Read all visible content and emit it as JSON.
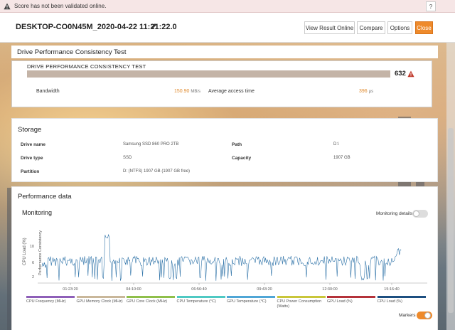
{
  "warning": {
    "text": "Score has not been validated online.",
    "help_label": "?"
  },
  "header": {
    "title": "DESKTOP-CO0N45M_2020-04-22 11:21:22.0",
    "buttons": {
      "view_online": "View Result Online",
      "compare": "Compare",
      "options": "Options",
      "close": "Close"
    }
  },
  "dpct": {
    "section_title": "Drive Performance Consistency Test",
    "inner_title": "DRIVE PERFORMANCE CONSISTENCY TEST",
    "score": "632",
    "bandwidth_label": "Bandwidth",
    "bandwidth_value": "150.90",
    "bandwidth_unit": "MB/s",
    "access_label": "Average access time",
    "access_value": "396",
    "access_unit": "µs"
  },
  "storage": {
    "section_title": "Storage",
    "drive_name_label": "Drive name",
    "drive_name_value": "Samsung SSD 860 PRO 2TB",
    "path_label": "Path",
    "path_value": "D:\\",
    "drive_type_label": "Drive type",
    "drive_type_value": "SSD",
    "capacity_label": "Capacity",
    "capacity_value": "1907 GB",
    "partition_label": "Partition",
    "partition_value": "D: (NTFS) 1907 GB (1907 GB free)"
  },
  "performance": {
    "section_title": "Performance data",
    "monitoring_title": "Monitoring",
    "monitoring_details_label": "Monitoring details",
    "monitoring_details_on": false,
    "markers_label": "Markers",
    "markers_on": true
  },
  "chart_data": {
    "type": "line",
    "ylabel": "CPU Load (%)",
    "y2label": "Performance Consistency",
    "y_ticks": [
      "2",
      "6",
      "10"
    ],
    "x_ticks": [
      "01:23:20",
      "04:10:00",
      "06:56:40",
      "09:43:20",
      "12:30:00",
      "15:16:40"
    ],
    "series_color": "#2f73a8",
    "legend": [
      {
        "name": "CPU Frequency (MHz)",
        "color": "#8e5fb8"
      },
      {
        "name": "GPU Memory Clock (MHz)",
        "color": "#c9b79a"
      },
      {
        "name": "GPU Core Clock (MHz)",
        "color": "#8fbf4a"
      },
      {
        "name": "CPU Temperature (°C)",
        "color": "#4fc9c3"
      },
      {
        "name": "GPU Temperature (°C)",
        "color": "#4fa6d6"
      },
      {
        "name": "CPU Power Consumption (Watts)",
        "color": "#c9c63a"
      },
      {
        "name": "GPU Load (%)",
        "color": "#b4323a"
      },
      {
        "name": "CPU Load (%)",
        "color": "#1d4f80"
      }
    ]
  }
}
